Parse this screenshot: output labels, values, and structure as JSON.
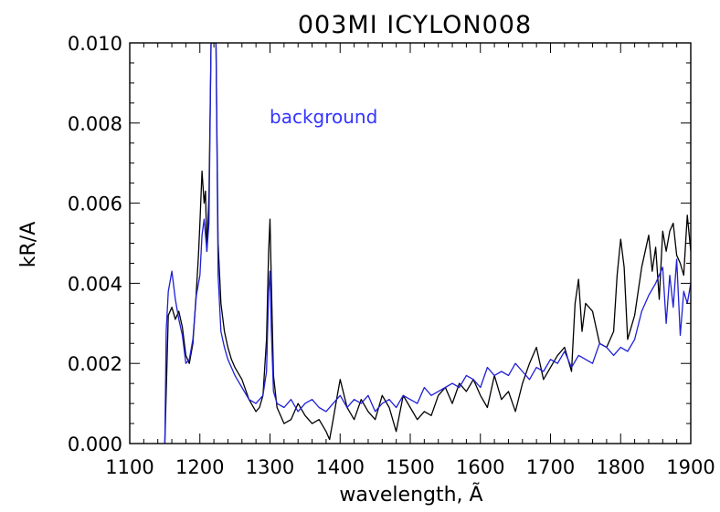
{
  "chart_data": {
    "type": "line",
    "title": "003MI ICYLON008",
    "xlabel": "wavelength, Ã",
    "ylabel": "kR/A",
    "xlim": [
      1100,
      1900
    ],
    "ylim": [
      0.0,
      0.01
    ],
    "xticks": [
      1100,
      1200,
      1300,
      1400,
      1500,
      1600,
      1700,
      1800,
      1900
    ],
    "xtick_labels": [
      "1100",
      "1200",
      "1300",
      "1400",
      "1500",
      "1600",
      "1700",
      "1800",
      "1900"
    ],
    "yticks": [
      0.0,
      0.002,
      0.004,
      0.006,
      0.008,
      0.01
    ],
    "ytick_labels": [
      "0.000",
      "0.002",
      "0.004",
      "0.006",
      "0.008",
      "0.010"
    ],
    "annotations": [
      {
        "text": "background",
        "color": "#3333ff"
      }
    ],
    "grid": false,
    "series": [
      {
        "color": "#000000",
        "x": [
          1150,
          1155,
          1160,
          1165,
          1170,
          1175,
          1180,
          1185,
          1190,
          1195,
          1198,
          1200,
          1203,
          1206,
          1208,
          1210,
          1213,
          1216,
          1218,
          1220,
          1223,
          1226,
          1230,
          1235,
          1240,
          1245,
          1250,
          1260,
          1270,
          1280,
          1285,
          1290,
          1295,
          1298,
          1300,
          1302,
          1305,
          1310,
          1320,
          1330,
          1340,
          1350,
          1360,
          1370,
          1380,
          1385,
          1390,
          1395,
          1400,
          1410,
          1420,
          1430,
          1440,
          1450,
          1460,
          1470,
          1480,
          1490,
          1500,
          1510,
          1520,
          1530,
          1540,
          1550,
          1560,
          1570,
          1580,
          1590,
          1600,
          1610,
          1620,
          1630,
          1640,
          1650,
          1660,
          1670,
          1680,
          1690,
          1700,
          1710,
          1720,
          1730,
          1735,
          1740,
          1745,
          1750,
          1760,
          1770,
          1780,
          1790,
          1795,
          1800,
          1805,
          1810,
          1820,
          1830,
          1840,
          1845,
          1850,
          1855,
          1860,
          1865,
          1870,
          1875,
          1880,
          1885,
          1890,
          1895,
          1900
        ],
        "y": [
          0.0,
          0.0032,
          0.0034,
          0.0031,
          0.0033,
          0.0029,
          0.0022,
          0.002,
          0.0025,
          0.0038,
          0.0047,
          0.0055,
          0.0068,
          0.006,
          0.0063,
          0.0048,
          0.0062,
          0.011,
          0.011,
          0.011,
          0.011,
          0.005,
          0.0035,
          0.0028,
          0.0024,
          0.0021,
          0.0019,
          0.0016,
          0.0011,
          0.0008,
          0.0009,
          0.0012,
          0.0026,
          0.0048,
          0.0056,
          0.004,
          0.0017,
          0.0009,
          0.0005,
          0.0006,
          0.001,
          0.0007,
          0.0005,
          0.0006,
          0.0003,
          0.0001,
          0.0006,
          0.0011,
          0.0016,
          0.0009,
          0.0006,
          0.0011,
          0.0008,
          0.0006,
          0.0012,
          0.0009,
          0.0003,
          0.0012,
          0.0009,
          0.0006,
          0.0008,
          0.0007,
          0.0012,
          0.0014,
          0.001,
          0.0015,
          0.0013,
          0.0016,
          0.0012,
          0.0009,
          0.0017,
          0.0011,
          0.0013,
          0.0008,
          0.0015,
          0.002,
          0.0024,
          0.0016,
          0.0019,
          0.0022,
          0.0024,
          0.0018,
          0.0035,
          0.0041,
          0.0028,
          0.0035,
          0.0033,
          0.0025,
          0.0024,
          0.0028,
          0.0042,
          0.0051,
          0.0044,
          0.0026,
          0.0032,
          0.0044,
          0.0052,
          0.0043,
          0.0049,
          0.0036,
          0.0053,
          0.0048,
          0.0053,
          0.0055,
          0.0047,
          0.0045,
          0.0042,
          0.0057,
          0.0048
        ]
      },
      {
        "color": "#1f1fd6",
        "x": [
          1150,
          1152,
          1155,
          1160,
          1165,
          1170,
          1175,
          1180,
          1185,
          1190,
          1195,
          1200,
          1203,
          1206,
          1210,
          1213,
          1216,
          1218,
          1220,
          1223,
          1226,
          1230,
          1235,
          1240,
          1245,
          1250,
          1260,
          1270,
          1280,
          1290,
          1295,
          1298,
          1300,
          1302,
          1305,
          1310,
          1320,
          1330,
          1340,
          1350,
          1360,
          1370,
          1380,
          1390,
          1400,
          1410,
          1420,
          1430,
          1440,
          1450,
          1460,
          1470,
          1480,
          1490,
          1500,
          1510,
          1520,
          1530,
          1540,
          1550,
          1560,
          1570,
          1580,
          1590,
          1600,
          1610,
          1620,
          1630,
          1640,
          1650,
          1660,
          1670,
          1680,
          1690,
          1700,
          1710,
          1720,
          1730,
          1740,
          1750,
          1760,
          1770,
          1780,
          1790,
          1800,
          1810,
          1820,
          1830,
          1840,
          1850,
          1860,
          1865,
          1870,
          1875,
          1880,
          1885,
          1890,
          1895,
          1900
        ],
        "y": [
          0.0,
          0.0028,
          0.0038,
          0.0043,
          0.0036,
          0.0031,
          0.0027,
          0.002,
          0.0021,
          0.0026,
          0.0037,
          0.0042,
          0.0052,
          0.0056,
          0.0048,
          0.0055,
          0.011,
          0.011,
          0.011,
          0.011,
          0.0042,
          0.0028,
          0.0024,
          0.0021,
          0.0019,
          0.0017,
          0.0014,
          0.0011,
          0.001,
          0.0012,
          0.0018,
          0.0038,
          0.0043,
          0.0028,
          0.0013,
          0.001,
          0.0009,
          0.0011,
          0.0008,
          0.001,
          0.0011,
          0.0009,
          0.0008,
          0.001,
          0.0012,
          0.0009,
          0.0011,
          0.001,
          0.0012,
          0.0008,
          0.001,
          0.0011,
          0.0009,
          0.0012,
          0.0011,
          0.001,
          0.0014,
          0.0012,
          0.0013,
          0.0014,
          0.0015,
          0.0014,
          0.0017,
          0.0016,
          0.0014,
          0.0019,
          0.0017,
          0.0018,
          0.0017,
          0.002,
          0.0018,
          0.0016,
          0.0019,
          0.0018,
          0.0021,
          0.002,
          0.0023,
          0.0019,
          0.0022,
          0.0021,
          0.002,
          0.0025,
          0.0024,
          0.0022,
          0.0024,
          0.0023,
          0.0026,
          0.0033,
          0.0037,
          0.004,
          0.0044,
          0.003,
          0.0042,
          0.0034,
          0.0046,
          0.0027,
          0.0038,
          0.0035,
          0.004
        ]
      }
    ]
  }
}
